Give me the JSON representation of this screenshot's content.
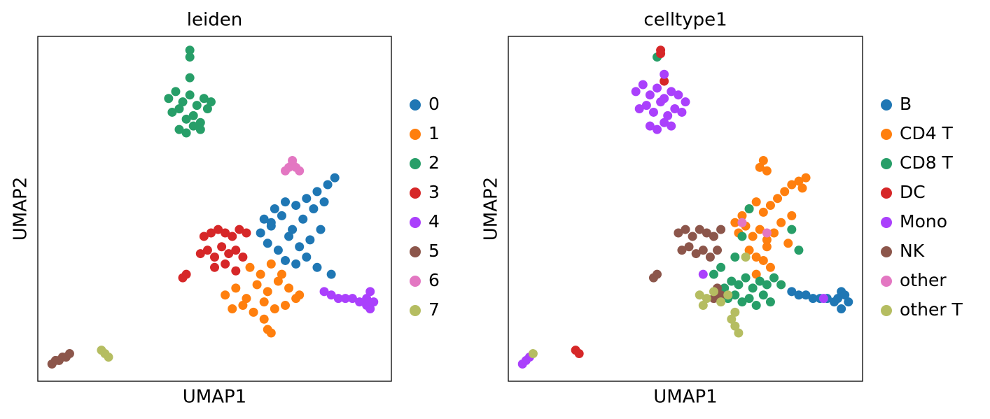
{
  "chart_data": [
    {
      "type": "scatter",
      "title": "leiden",
      "xlabel": "UMAP1",
      "ylabel": "UMAP2",
      "xlim": [
        0,
        100
      ],
      "ylim": [
        0,
        100
      ],
      "legend": "right",
      "series": [
        {
          "name": "0",
          "color": "#1f77b4",
          "x": [
            64,
            67,
            70,
            73,
            76,
            79,
            82,
            84,
            63,
            66,
            69,
            72,
            75,
            78,
            81,
            65,
            68,
            71,
            74,
            77,
            80,
            70,
            73,
            76,
            79,
            83,
            66
          ],
          "y": [
            47,
            50,
            52,
            51,
            53,
            55,
            57,
            59,
            43,
            45,
            48,
            44,
            47,
            50,
            52,
            40,
            38,
            42,
            39,
            41,
            44,
            35,
            34,
            36,
            33,
            31,
            46
          ]
        },
        {
          "name": "1",
          "color": "#ff7f0e",
          "x": [
            53,
            56,
            59,
            62,
            65,
            68,
            71,
            74,
            55,
            58,
            61,
            64,
            67,
            70,
            73,
            60,
            63,
            66,
            69,
            64,
            65,
            66
          ],
          "y": [
            25,
            27,
            24,
            28,
            26,
            29,
            27,
            25,
            21,
            22,
            20,
            23,
            21,
            22,
            24,
            33,
            31,
            34,
            31,
            18,
            15,
            14
          ]
        },
        {
          "name": "2",
          "color": "#279e68",
          "x": [
            37,
            39,
            41,
            43,
            45,
            47,
            49,
            38,
            40,
            42,
            44,
            46,
            48,
            40,
            42,
            44,
            46,
            43,
            43,
            43
          ],
          "y": [
            82,
            84,
            81,
            83,
            80,
            82,
            81,
            78,
            79,
            76,
            77,
            75,
            79,
            73,
            72,
            74,
            73,
            88,
            94,
            96
          ]
        },
        {
          "name": "3",
          "color": "#d62728",
          "x": [
            47,
            49,
            51,
            53,
            55,
            57,
            59,
            46,
            48,
            50,
            52,
            54,
            56,
            58,
            50,
            53,
            56,
            42,
            41
          ],
          "y": [
            42,
            43,
            44,
            43,
            42,
            44,
            43,
            37,
            38,
            36,
            39,
            37,
            38,
            36,
            33,
            34,
            32,
            31,
            30
          ]
        },
        {
          "name": "4",
          "color": "#aa40fc",
          "x": [
            81,
            83,
            85,
            87,
            89,
            91,
            93,
            94,
            95,
            94,
            93
          ],
          "y": [
            26,
            25,
            24,
            24,
            24,
            23,
            24,
            26,
            23,
            21,
            22
          ]
        },
        {
          "name": "5",
          "color": "#8c564b",
          "x": [
            4,
            5,
            6,
            7,
            8,
            9
          ],
          "y": [
            5,
            6,
            6,
            7,
            7,
            8
          ]
        },
        {
          "name": "6",
          "color": "#e377c2",
          "x": [
            70,
            71,
            72,
            73,
            74,
            72
          ],
          "y": [
            61,
            62,
            63,
            62,
            61,
            64
          ]
        },
        {
          "name": "7",
          "color": "#b5bd61",
          "x": [
            18,
            19,
            20
          ],
          "y": [
            9,
            8,
            7
          ]
        }
      ]
    },
    {
      "type": "scatter",
      "title": "celltype1",
      "xlabel": "UMAP1",
      "ylabel": "UMAP2",
      "xlim": [
        0,
        100
      ],
      "ylim": [
        0,
        100
      ],
      "legend": "right",
      "series": [
        {
          "name": "B",
          "color": "#1f77b4",
          "x": [
            80,
            82,
            84,
            86,
            88,
            90,
            92,
            93,
            94,
            95,
            96,
            94
          ],
          "y": [
            26,
            25,
            25,
            24,
            24,
            24,
            23,
            24,
            26,
            25,
            23,
            21
          ]
        },
        {
          "name": "CD4 T",
          "color": "#ff7f0e",
          "x": [
            71,
            72,
            73,
            64,
            66,
            68,
            70,
            72,
            74,
            76,
            78,
            80,
            82,
            84,
            65,
            67,
            69,
            71,
            73,
            75,
            77,
            79,
            68,
            70,
            72,
            74,
            80,
            83,
            70,
            73
          ],
          "y": [
            62,
            64,
            61,
            46,
            48,
            50,
            52,
            49,
            51,
            53,
            55,
            57,
            58,
            59,
            43,
            45,
            42,
            44,
            41,
            43,
            46,
            40,
            38,
            36,
            35,
            33,
            48,
            56,
            31,
            39
          ]
        },
        {
          "name": "CD8 T",
          "color": "#279e68",
          "x": [
            42,
            61,
            63,
            65,
            67,
            69,
            71,
            73,
            75,
            77,
            62,
            64,
            66,
            68,
            70,
            72,
            74,
            68,
            66,
            80,
            64,
            82,
            60,
            58
          ],
          "y": [
            94,
            27,
            29,
            28,
            30,
            27,
            29,
            28,
            30,
            28,
            24,
            25,
            23,
            24,
            22,
            25,
            23,
            50,
            42,
            44,
            36,
            38,
            33,
            31
          ]
        },
        {
          "name": "DC",
          "color": "#d62728",
          "x": [
            43,
            43,
            44,
            19,
            20
          ],
          "y": [
            95,
            96,
            87,
            9,
            8
          ]
        },
        {
          "name": "Mono",
          "color": "#aa40fc",
          "x": [
            36,
            38,
            40,
            42,
            44,
            46,
            48,
            50,
            37,
            39,
            41,
            43,
            45,
            47,
            49,
            40,
            42,
            44,
            46,
            44,
            5,
            6,
            4,
            55,
            89
          ],
          "y": [
            84,
            86,
            83,
            85,
            82,
            84,
            83,
            81,
            79,
            80,
            78,
            81,
            77,
            79,
            78,
            74,
            73,
            75,
            74,
            89,
            6,
            7,
            5,
            31,
            24
          ]
        },
        {
          "name": "NK",
          "color": "#8c564b",
          "x": [
            48,
            50,
            52,
            54,
            56,
            58,
            60,
            49,
            51,
            53,
            55,
            57,
            59,
            42,
            41,
            60,
            59,
            58
          ],
          "y": [
            43,
            44,
            42,
            44,
            43,
            42,
            44,
            38,
            39,
            37,
            38,
            36,
            38,
            31,
            30,
            25,
            27,
            24
          ]
        },
        {
          "name": "other",
          "color": "#e377c2",
          "x": [
            66,
            73
          ],
          "y": [
            46,
            43
          ]
        },
        {
          "name": "other T",
          "color": "#b5bd61",
          "x": [
            54,
            56,
            58,
            60,
            62,
            55,
            63,
            64,
            65,
            64,
            7,
            67
          ],
          "y": [
            25,
            24,
            26,
            23,
            25,
            22,
            18,
            16,
            14,
            20,
            8,
            36
          ]
        }
      ]
    }
  ]
}
